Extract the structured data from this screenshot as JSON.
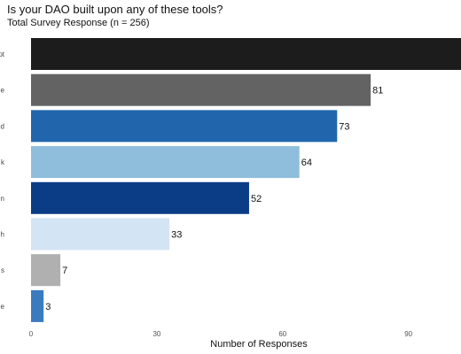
{
  "chart_data": {
    "type": "bar",
    "orientation": "horizontal",
    "title": "Is your DAO built upon any of these tools?",
    "subtitle": "Total Survey Response (n = 256)",
    "xlabel": "Number of Responses",
    "ylabel": "",
    "categories": [
      "pt",
      "e",
      "d",
      "k",
      "n",
      "h",
      "s",
      "e"
    ],
    "values": [
      110,
      81,
      73,
      64,
      52,
      33,
      7,
      3
    ],
    "data_labels": [
      "",
      "81",
      "73",
      "64",
      "52",
      "33",
      "7",
      "3"
    ],
    "colors": [
      "#1c1c1c",
      "#636363",
      "#2166ac",
      "#8fbedc",
      "#0b3c86",
      "#d3e4f4",
      "#b0b0b0",
      "#3a7bbf"
    ],
    "xticks": [
      0,
      30,
      60,
      90
    ],
    "xlim": [
      0,
      102
    ],
    "grid": false,
    "legend": "none"
  }
}
